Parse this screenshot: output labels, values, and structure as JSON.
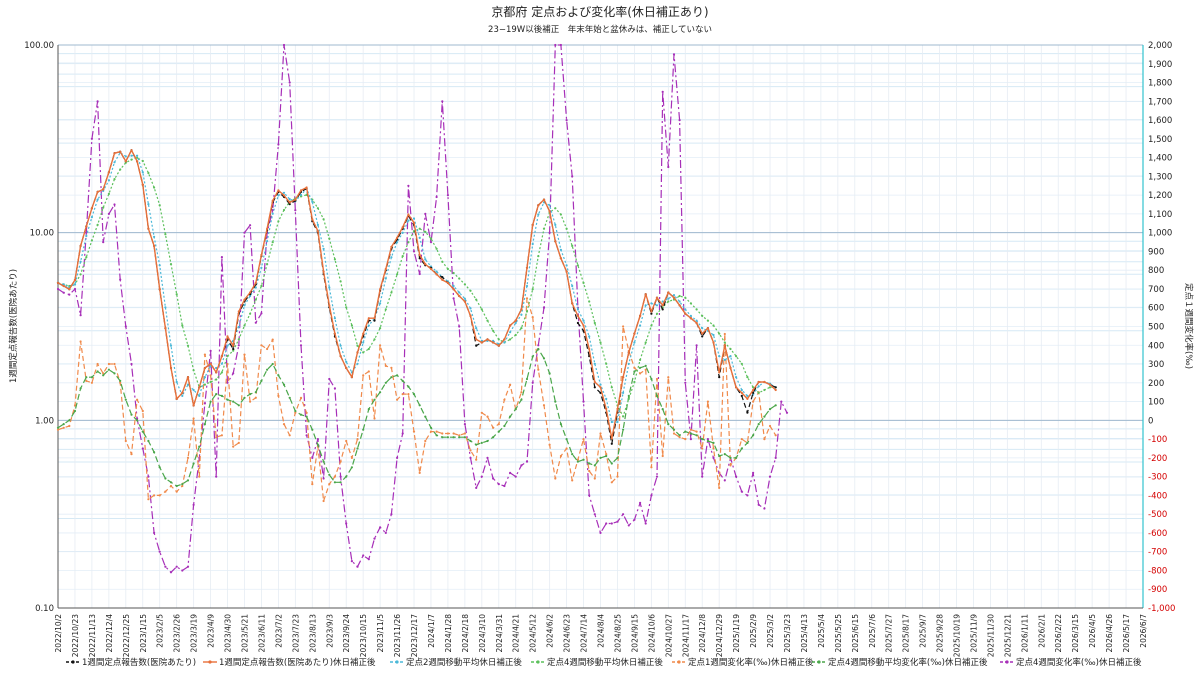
{
  "chart_data": {
    "type": "line",
    "title": "京都府 定点および変化率(休日補正あり)",
    "subtitle": "23−19W以後補正　年末年始と盆休みは、補正していない",
    "ylabel": "1週間定点報告数(医院あたり)",
    "y2label": "定点１週間変化率(‰)",
    "y_scale": "log",
    "ylim": [
      0.1,
      100
    ],
    "y_ticks": [
      "0.10",
      "1.00",
      "10.00",
      "100.00"
    ],
    "y2lim": [
      -1000,
      2000
    ],
    "y2_ticks": [
      "-1,000",
      "-900",
      "-800",
      "-700",
      "-600",
      "-500",
      "-400",
      "-300",
      "-200",
      "-100",
      "0",
      "100",
      "200",
      "300",
      "400",
      "500",
      "600",
      "700",
      "800",
      "900",
      "1,000",
      "1,100",
      "1,200",
      "1,300",
      "1,400",
      "1,500",
      "1,600",
      "1,700",
      "1,800",
      "1,900",
      "2,000"
    ],
    "x_ticks": [
      "2022/10/2",
      "2022/10/23",
      "2022/11/13",
      "2022/12/4",
      "2022/12/25",
      "2023/1/15",
      "2023/2/5",
      "2023/2/26",
      "2023/3/19",
      "2023/4/9",
      "2023/4/30",
      "2023/5/21",
      "2023/6/11",
      "2023/7/2",
      "2023/7/23",
      "2023/8/13",
      "2023/9/3",
      "2023/9/24",
      "2023/10/15",
      "2023/11/5",
      "2023/11/26",
      "2023/12/17",
      "2024/1/7",
      "2024/1/28",
      "2024/2/18",
      "2024/3/10",
      "2024/3/31",
      "2024/4/21",
      "2024/5/12",
      "2024/6/2",
      "2024/6/23",
      "2024/7/14",
      "2024/8/4",
      "2024/8/25",
      "2024/9/15",
      "2024/10/6",
      "2024/10/27",
      "2024/11/17",
      "2024/12/8",
      "2024/12/29",
      "2025/1/19",
      "2025/2/9",
      "2025/3/2",
      "2025/3/23",
      "2025/4/13",
      "2025/5/4",
      "2025/5/25",
      "2025/6/15",
      "2025/7/6",
      "2025/7/27",
      "2025/8/17",
      "2025/9/7",
      "2025/9/28",
      "2025/10/19",
      "2025/11/9",
      "2025/11/30",
      "2025/12/21",
      "2026/1/11",
      "2026/2/1",
      "2026/2/22",
      "2026/3/15",
      "2026/4/5",
      "2026/4/26",
      "2026/5/17",
      "2026/6/7"
    ],
    "grid": true,
    "legend_position": "bottom",
    "series": [
      {
        "name": "1週間定点報告数(医院あたり)",
        "axis": "left",
        "color": "#111111",
        "dash": "5,3",
        "marker": "dot",
        "values": [
          5.4,
          5.2,
          5.0,
          5.6,
          8.5,
          10.8,
          13.5,
          16.5,
          17.0,
          21.0,
          26.5,
          27.0,
          24.0,
          27.5,
          24.0,
          18.0,
          10.5,
          8.5,
          5.0,
          3.1,
          1.9,
          1.3,
          1.4,
          1.7,
          1.2,
          1.5,
          1.9,
          2.0,
          1.8,
          2.2,
          2.7,
          2.4,
          3.7,
          4.3,
          4.7,
          5.3,
          7.5,
          10.3,
          14.5,
          16.5,
          15.5,
          14.2,
          14.8,
          16.5,
          17.2,
          11.5,
          10.0,
          6.0,
          4.0,
          2.8,
          2.2,
          1.9,
          1.7,
          2.3,
          2.8,
          3.4,
          3.4,
          4.9,
          6.3,
          8.2,
          9.2,
          10.5,
          12.3,
          11.0,
          7.3,
          6.7,
          6.5,
          6.0,
          5.8,
          5.4,
          5.0,
          4.6,
          4.3,
          3.6,
          2.5,
          2.6,
          2.7,
          2.6,
          2.5,
          2.7,
          3.2,
          3.4,
          3.9,
          6.5,
          11.0,
          14.0,
          15.0,
          13.0,
          9.0,
          7.3,
          6.2,
          4.2,
          3.3,
          3.0,
          2.2,
          1.5,
          1.4,
          1.1,
          0.75,
          1.1,
          1.7,
          2.3,
          2.9,
          3.6,
          4.7,
          3.7,
          4.5,
          3.9,
          4.8,
          4.5,
          4.1,
          3.7,
          3.5,
          3.3,
          2.8,
          3.1,
          2.6,
          1.7,
          2.5,
          1.9,
          1.5,
          1.35,
          1.1,
          1.4,
          1.6,
          1.6,
          1.55,
          1.5
        ]
      },
      {
        "name": "1週間定点報告数(医院あたり)休日補正後",
        "axis": "left",
        "color": "#e8703a",
        "dash": "",
        "marker": "dot",
        "values": [
          5.4,
          5.2,
          5.0,
          5.6,
          8.5,
          10.8,
          13.5,
          16.5,
          17.0,
          21.0,
          26.5,
          27.0,
          24.0,
          27.5,
          24.0,
          18.0,
          10.5,
          8.5,
          5.0,
          3.1,
          1.9,
          1.3,
          1.4,
          1.7,
          1.2,
          1.5,
          1.9,
          2.0,
          1.8,
          2.2,
          2.8,
          2.5,
          3.8,
          4.4,
          4.8,
          5.4,
          7.6,
          10.5,
          14.8,
          16.8,
          15.8,
          14.5,
          15.0,
          16.8,
          17.4,
          11.8,
          10.2,
          6.2,
          4.1,
          2.9,
          2.2,
          1.9,
          1.7,
          2.3,
          2.9,
          3.5,
          3.5,
          5.0,
          6.4,
          8.4,
          9.4,
          10.7,
          12.5,
          11.3,
          7.6,
          6.8,
          6.4,
          6.0,
          5.6,
          5.4,
          5.0,
          4.6,
          4.3,
          3.6,
          2.7,
          2.6,
          2.7,
          2.6,
          2.5,
          2.7,
          3.2,
          3.4,
          3.9,
          6.5,
          11.0,
          14.0,
          15.0,
          13.0,
          9.0,
          7.3,
          6.2,
          4.2,
          3.6,
          3.2,
          2.4,
          1.6,
          1.5,
          1.15,
          0.8,
          1.15,
          1.7,
          2.3,
          2.9,
          3.6,
          4.7,
          3.8,
          4.5,
          4.1,
          4.8,
          4.5,
          4.1,
          3.7,
          3.5,
          3.3,
          2.9,
          3.1,
          2.6,
          1.8,
          2.5,
          1.9,
          1.5,
          1.4,
          1.3,
          1.45,
          1.6,
          1.6,
          1.55,
          1.45
        ]
      },
      {
        "name": "定点2週間移動平均休日補正後",
        "axis": "left",
        "color": "#4ab8d8",
        "dash": "2,2",
        "marker": "dot",
        "values": [
          5.4,
          5.3,
          5.1,
          5.3,
          7.0,
          9.6,
          12.1,
          15.0,
          16.7,
          19.0,
          23.7,
          26.7,
          25.5,
          25.7,
          25.7,
          21.0,
          14.2,
          9.5,
          6.7,
          4.0,
          2.5,
          1.6,
          1.35,
          1.55,
          1.45,
          1.35,
          1.7,
          1.95,
          1.9,
          2.0,
          2.5,
          2.65,
          3.15,
          4.1,
          4.6,
          5.1,
          6.5,
          9.0,
          12.6,
          15.8,
          16.3,
          15.1,
          14.7,
          15.9,
          17.1,
          14.6,
          11.0,
          8.2,
          5.1,
          3.5,
          2.5,
          2.05,
          1.8,
          2.0,
          2.6,
          3.2,
          3.5,
          4.2,
          5.7,
          7.4,
          8.9,
          10.0,
          11.6,
          11.9,
          9.4,
          7.2,
          6.6,
          6.2,
          5.8,
          5.5,
          5.2,
          4.8,
          4.45,
          3.95,
          3.1,
          2.65,
          2.65,
          2.65,
          2.55,
          2.6,
          2.95,
          3.3,
          3.65,
          5.2,
          8.7,
          12.5,
          14.5,
          14.0,
          11.0,
          8.1,
          6.7,
          5.2,
          3.9,
          3.4,
          2.8,
          2.0,
          1.55,
          1.3,
          0.98,
          0.98,
          1.4,
          2.0,
          2.6,
          3.2,
          4.1,
          4.2,
          4.1,
          4.3,
          4.45,
          4.65,
          4.3,
          3.9,
          3.6,
          3.4,
          3.1,
          3.0,
          2.85,
          2.2,
          2.1,
          2.2,
          1.7,
          1.45,
          1.35,
          1.37,
          1.52,
          1.6,
          1.57,
          1.5
        ]
      },
      {
        "name": "定点4週間移動平均休日補正後",
        "axis": "left",
        "color": "#5cc05c",
        "dash": "2,2",
        "marker": "dot",
        "values": [
          5.4,
          5.3,
          5.2,
          5.3,
          6.0,
          7.4,
          9.1,
          11.0,
          13.6,
          16.1,
          19.3,
          21.7,
          23.6,
          24.5,
          25.1,
          24.1,
          20.8,
          17.4,
          14.0,
          9.8,
          6.8,
          4.7,
          3.2,
          2.5,
          1.85,
          1.5,
          1.55,
          1.6,
          1.65,
          1.8,
          2.2,
          2.35,
          2.7,
          3.2,
          3.7,
          4.4,
          5.2,
          6.8,
          8.9,
          11.5,
          13.2,
          14.6,
          15.2,
          15.6,
          15.9,
          15.0,
          13.5,
          11.8,
          9.3,
          7.2,
          5.5,
          4.0,
          3.2,
          2.5,
          2.3,
          2.4,
          2.7,
          3.1,
          3.9,
          4.8,
          6.0,
          7.5,
          8.9,
          10.2,
          10.5,
          10.1,
          9.3,
          8.2,
          7.0,
          6.4,
          6.1,
          5.7,
          5.3,
          4.9,
          4.4,
          3.9,
          3.4,
          3.0,
          2.7,
          2.6,
          2.7,
          2.85,
          3.1,
          3.8,
          5.0,
          7.5,
          10.5,
          12.8,
          13.5,
          12.5,
          10.5,
          8.5,
          6.7,
          5.4,
          4.3,
          3.3,
          2.6,
          2.0,
          1.5,
          1.2,
          1.05,
          1.3,
          1.6,
          2.1,
          2.6,
          3.2,
          3.7,
          4.0,
          4.3,
          4.4,
          4.6,
          4.5,
          4.2,
          3.9,
          3.6,
          3.4,
          3.2,
          2.9,
          2.6,
          2.4,
          2.2,
          2.0,
          1.7,
          1.5,
          1.4,
          1.45,
          1.5,
          1.5
        ]
      },
      {
        "name": "定点1週間変化率(‰)休日補正後",
        "axis": "right",
        "color": "#f08a4b",
        "dash": "5,3",
        "marker": "dot",
        "values": [
          -50,
          -40,
          -30,
          80,
          420,
          210,
          200,
          300,
          250,
          300,
          300,
          200,
          -110,
          -180,
          110,
          50,
          -420,
          -400,
          -400,
          -380,
          -350,
          -380,
          -350,
          -200,
          10,
          -300,
          350,
          240,
          -90,
          -80,
          300,
          -140,
          -120,
          350,
          100,
          120,
          400,
          380,
          430,
          130,
          -20,
          -80,
          40,
          120,
          40,
          -340,
          -140,
          -430,
          -340,
          -300,
          -220,
          -110,
          -200,
          -100,
          240,
          260,
          10,
          400,
          290,
          280,
          110,
          140,
          140,
          -60,
          -280,
          -110,
          -60,
          -60,
          -70,
          -70,
          -70,
          -80,
          -70,
          -160,
          -210,
          40,
          20,
          -40,
          -20,
          110,
          190,
          60,
          150,
          650,
          550,
          270,
          80,
          -130,
          -310,
          -190,
          -150,
          -320,
          -210,
          -100,
          -270,
          -310,
          -70,
          -180,
          -330,
          -300,
          500,
          370,
          280,
          250,
          270,
          -250,
          220,
          -190,
          230,
          -70,
          -90,
          -100,
          -50,
          -60,
          -150,
          100,
          -150,
          -360,
          460,
          -240,
          -200,
          -100,
          -120,
          100,
          150,
          -100,
          -30,
          -80
        ]
      },
      {
        "name": "定点4週間移動平均変化率(‰)休日補正後",
        "axis": "right",
        "color": "#4aa64a",
        "dash": "6,3",
        "marker": "dot",
        "values": [
          -40,
          -20,
          0,
          50,
          170,
          230,
          230,
          260,
          240,
          270,
          250,
          210,
          110,
          30,
          0,
          -60,
          -110,
          -170,
          -250,
          -310,
          -330,
          -350,
          -340,
          -320,
          -230,
          -140,
          -20,
          100,
          140,
          130,
          110,
          100,
          80,
          120,
          140,
          150,
          210,
          270,
          300,
          240,
          190,
          120,
          50,
          30,
          20,
          -50,
          -130,
          -220,
          -290,
          -330,
          -330,
          -300,
          -250,
          -150,
          -50,
          60,
          110,
          150,
          200,
          230,
          240,
          210,
          180,
          140,
          80,
          20,
          -40,
          -80,
          -90,
          -90,
          -90,
          -90,
          -90,
          -110,
          -130,
          -120,
          -110,
          -90,
          -60,
          -30,
          20,
          60,
          110,
          220,
          340,
          380,
          330,
          250,
          100,
          -20,
          -100,
          -180,
          -220,
          -210,
          -230,
          -240,
          -200,
          -190,
          -230,
          -200,
          -50,
          130,
          260,
          280,
          290,
          220,
          130,
          60,
          -20,
          -50,
          -80,
          -60,
          -70,
          -80,
          -100,
          -110,
          -120,
          -190,
          -180,
          -200,
          -200,
          -150,
          -120,
          -80,
          -20,
          20,
          60,
          80
        ]
      },
      {
        "name": "定点4週間変化率(‰)休日補正後",
        "axis": "right",
        "color": "#a72fb8",
        "dash": "8,3,2,3",
        "marker": "dot",
        "values": [
          700,
          680,
          670,
          700,
          560,
          1000,
          1500,
          1700,
          950,
          1100,
          1150,
          750,
          500,
          300,
          10,
          -150,
          -300,
          -600,
          -700,
          -780,
          -810,
          -780,
          -800,
          -780,
          -450,
          -200,
          90,
          370,
          -300,
          870,
          200,
          250,
          400,
          1000,
          1040,
          520,
          570,
          1000,
          1120,
          1470,
          2000,
          1800,
          1120,
          400,
          -80,
          -200,
          -100,
          -310,
          220,
          170,
          -300,
          -550,
          -750,
          -780,
          -720,
          -740,
          -630,
          -570,
          -600,
          -500,
          -200,
          -70,
          1250,
          900,
          780,
          1100,
          950,
          1190,
          1700,
          1200,
          650,
          500,
          -20,
          -200,
          -360,
          -300,
          -200,
          -310,
          -340,
          -350,
          -280,
          -300,
          -240,
          -220,
          200,
          400,
          600,
          1000,
          2000,
          2000,
          1600,
          1300,
          600,
          100,
          -400,
          -500,
          -600,
          -550,
          -550,
          -540,
          -500,
          -560,
          -530,
          -440,
          -550,
          -400,
          -300,
          1750,
          1350,
          1950,
          1600,
          200,
          -100,
          400,
          -300,
          -100,
          -200,
          -280,
          -320,
          -200,
          -300,
          -380,
          -400,
          -280,
          -450,
          -470,
          -300,
          -200,
          100,
          40
        ]
      }
    ]
  }
}
